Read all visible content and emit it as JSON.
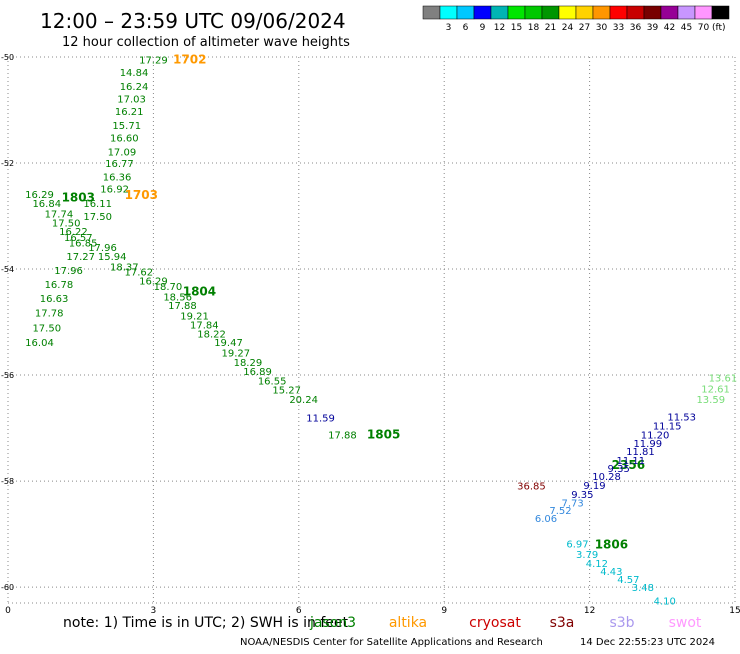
{
  "header": {
    "title": "12:00 – 23:59 UTC 09/06/2024",
    "subtitle": "12 hour collection of altimeter wave heights"
  },
  "scale": {
    "unit": "(ft)",
    "bins": [
      {
        "label": "",
        "color": "#808080"
      },
      {
        "label": "3",
        "color": "#00ffff"
      },
      {
        "label": "6",
        "color": "#00c8ff"
      },
      {
        "label": "9",
        "color": "#0000ff"
      },
      {
        "label": "12",
        "color": "#00b4b4"
      },
      {
        "label": "15",
        "color": "#00e600"
      },
      {
        "label": "18",
        "color": "#00c800"
      },
      {
        "label": "21",
        "color": "#009600"
      },
      {
        "label": "24",
        "color": "#ffff00"
      },
      {
        "label": "27",
        "color": "#ffd200"
      },
      {
        "label": "30",
        "color": "#ff9600"
      },
      {
        "label": "33",
        "color": "#ff0000"
      },
      {
        "label": "36",
        "color": "#c80000"
      },
      {
        "label": "39",
        "color": "#780000"
      },
      {
        "label": "42",
        "color": "#960096"
      },
      {
        "label": "45",
        "color": "#c896ff"
      },
      {
        "label": "70",
        "color": "#ff96ff"
      },
      {
        "label": "",
        "color": "#000000"
      }
    ]
  },
  "legend": {
    "note": "note:  1) Time is in UTC;  2) SWH is in feet",
    "satellites": [
      {
        "name": "jason3",
        "color": "#008000"
      },
      {
        "name": "altika",
        "color": "#ff9900"
      },
      {
        "name": "cryosat",
        "color": "#cc0000"
      },
      {
        "name": "s3a",
        "color": "#800000"
      },
      {
        "name": "s3b",
        "color": "#aa99ee"
      },
      {
        "name": "swot",
        "color": "#ff99ff"
      }
    ]
  },
  "footer": {
    "credit": "NOAA/NESDIS Center for Satellite Applications and Research",
    "timestamp": "14 Dec 22:55:23 UTC 2024"
  },
  "chart_data": {
    "type": "scatter",
    "x_ticks": [
      "0",
      "3",
      "6",
      "9",
      "12",
      "15"
    ],
    "y_ticks": [
      "-50",
      "-52",
      "-54",
      "-56",
      "-58",
      "-60"
    ],
    "xlim": [
      0,
      15
    ],
    "ylim": [
      -60.3,
      -50
    ],
    "grid": true,
    "series": [
      {
        "name": "jason3",
        "color": "#008000",
        "points": [
          {
            "x": 3.0,
            "y": -50.05,
            "label": "17.29"
          },
          {
            "x": 2.6,
            "y": -50.28,
            "label": "14.84"
          },
          {
            "x": 2.6,
            "y": -50.55,
            "label": "16.24"
          },
          {
            "x": 2.55,
            "y": -50.78,
            "label": "17.03"
          },
          {
            "x": 2.5,
            "y": -51.02,
            "label": "16.21"
          },
          {
            "x": 2.45,
            "y": -51.28,
            "label": "15.71"
          },
          {
            "x": 2.4,
            "y": -51.52,
            "label": "16.60"
          },
          {
            "x": 2.35,
            "y": -51.78,
            "label": "17.09"
          },
          {
            "x": 2.3,
            "y": -52.0,
            "label": "16.77"
          },
          {
            "x": 2.25,
            "y": -52.25,
            "label": "16.36"
          },
          {
            "x": 2.2,
            "y": -52.48,
            "label": "16.92"
          },
          {
            "x": 1.85,
            "y": -52.75,
            "label": "16.11"
          },
          {
            "x": 1.85,
            "y": -53.0,
            "label": "17.50"
          },
          {
            "x": 0.65,
            "y": -52.58,
            "label": "16.29"
          },
          {
            "x": 0.8,
            "y": -52.75,
            "label": "16.84"
          },
          {
            "x": 1.05,
            "y": -52.95,
            "label": "17.74"
          },
          {
            "x": 1.2,
            "y": -53.12,
            "label": "17.50"
          },
          {
            "x": 1.35,
            "y": -53.28,
            "label": "16.22"
          },
          {
            "x": 1.45,
            "y": -53.4,
            "label": "16.57"
          },
          {
            "x": 1.55,
            "y": -53.5,
            "label": "16.85"
          },
          {
            "x": 1.95,
            "y": -53.58,
            "label": "17.96"
          },
          {
            "x": 2.15,
            "y": -53.75,
            "label": "15.94"
          },
          {
            "x": 2.4,
            "y": -53.95,
            "label": "18.37"
          },
          {
            "x": 2.7,
            "y": -54.05,
            "label": "17.62"
          },
          {
            "x": 1.5,
            "y": -53.75,
            "label": "17.27"
          },
          {
            "x": 1.25,
            "y": -54.02,
            "label": "17.96"
          },
          {
            "x": 1.05,
            "y": -54.28,
            "label": "16.78"
          },
          {
            "x": 0.95,
            "y": -54.55,
            "label": "16.63"
          },
          {
            "x": 0.85,
            "y": -54.82,
            "label": "17.78"
          },
          {
            "x": 0.8,
            "y": -55.1,
            "label": "17.50"
          },
          {
            "x": 0.65,
            "y": -55.38,
            "label": "16.04"
          },
          {
            "x": 3.0,
            "y": -54.22,
            "label": "16.29"
          },
          {
            "x": 3.3,
            "y": -54.32,
            "label": "18.70"
          },
          {
            "x": 3.5,
            "y": -54.52,
            "label": "18.56"
          },
          {
            "x": 3.6,
            "y": -54.68,
            "label": "17.88"
          },
          {
            "x": 3.85,
            "y": -54.88,
            "label": "19.21"
          },
          {
            "x": 4.05,
            "y": -55.05,
            "label": "17.84"
          },
          {
            "x": 4.2,
            "y": -55.22,
            "label": "18.22"
          },
          {
            "x": 4.55,
            "y": -55.38,
            "label": "19.47"
          },
          {
            "x": 4.7,
            "y": -55.57,
            "label": "19.27"
          },
          {
            "x": 4.95,
            "y": -55.75,
            "label": "18.29"
          },
          {
            "x": 5.15,
            "y": -55.92,
            "label": "16.89"
          },
          {
            "x": 5.45,
            "y": -56.1,
            "label": "16.55"
          },
          {
            "x": 5.75,
            "y": -56.27,
            "label": "15.27"
          },
          {
            "x": 6.1,
            "y": -56.45,
            "label": "20.24"
          },
          {
            "x": 6.9,
            "y": -57.12,
            "label": "17.88"
          },
          {
            "x": 1.45,
            "y": -52.65,
            "label": "1803",
            "track": true
          },
          {
            "x": 3.95,
            "y": -54.42,
            "label": "1804",
            "track": true
          },
          {
            "x": 7.75,
            "y": -57.12,
            "label": "1805",
            "track": true
          },
          {
            "x": 12.45,
            "y": -59.2,
            "label": "1806",
            "track": true
          },
          {
            "x": 12.8,
            "y": -57.7,
            "label": "2356",
            "track": true
          }
        ]
      },
      {
        "name": "altika",
        "color": "#ff9900",
        "points": [
          {
            "x": 3.75,
            "y": -50.05,
            "label": "1702",
            "track": true
          },
          {
            "x": 2.75,
            "y": -52.6,
            "label": "1703",
            "track": true
          }
        ]
      },
      {
        "name": "s3a",
        "color": "#800000",
        "points": [
          {
            "x": 10.8,
            "y": -58.08,
            "label": "36.85"
          }
        ]
      },
      {
        "name": "extra-tracks",
        "color": "#33cc33",
        "points": [
          {
            "x": 14.75,
            "y": -56.05,
            "label": "13.61",
            "color": "#77dd77"
          },
          {
            "x": 14.6,
            "y": -56.25,
            "label": "12.61",
            "color": "#77dd77"
          },
          {
            "x": 14.5,
            "y": -56.45,
            "label": "13.59",
            "color": "#77dd77"
          },
          {
            "x": 13.9,
            "y": -56.78,
            "label": "11.53",
            "color": "#000099"
          },
          {
            "x": 13.6,
            "y": -56.95,
            "label": "11.15",
            "color": "#000099"
          },
          {
            "x": 13.35,
            "y": -57.12,
            "label": "11.20",
            "color": "#000099"
          },
          {
            "x": 13.2,
            "y": -57.28,
            "label": "11.99",
            "color": "#000099"
          },
          {
            "x": 13.05,
            "y": -57.43,
            "label": "11.81",
            "color": "#000099"
          },
          {
            "x": 12.85,
            "y": -57.6,
            "label": "11.11",
            "color": "#000099"
          },
          {
            "x": 12.6,
            "y": -57.75,
            "label": "9.35",
            "color": "#000099"
          },
          {
            "x": 12.35,
            "y": -57.9,
            "label": "10.28",
            "color": "#000099"
          },
          {
            "x": 12.1,
            "y": -58.07,
            "label": "9.19",
            "color": "#000099"
          },
          {
            "x": 11.85,
            "y": -58.24,
            "label": "9.35",
            "color": "#000099"
          },
          {
            "x": 11.65,
            "y": -58.4,
            "label": "7.73",
            "color": "#3388dd"
          },
          {
            "x": 11.4,
            "y": -58.55,
            "label": "7.52",
            "color": "#3388dd"
          },
          {
            "x": 11.1,
            "y": -58.7,
            "label": "6.06",
            "color": "#3388dd"
          },
          {
            "x": 11.75,
            "y": -59.18,
            "label": "6.97",
            "color": "#00bbcc"
          },
          {
            "x": 11.95,
            "y": -59.38,
            "label": "3.79",
            "color": "#00bbcc"
          },
          {
            "x": 12.15,
            "y": -59.55,
            "label": "4.12",
            "color": "#00bbcc"
          },
          {
            "x": 12.45,
            "y": -59.7,
            "label": "4.43",
            "color": "#00bbcc"
          },
          {
            "x": 12.8,
            "y": -59.85,
            "label": "4.57",
            "color": "#00bbcc"
          },
          {
            "x": 13.1,
            "y": -60.0,
            "label": "3.48",
            "color": "#00bbcc"
          },
          {
            "x": 13.55,
            "y": -60.25,
            "label": "4.10",
            "color": "#00bbcc"
          },
          {
            "x": 6.45,
            "y": -56.8,
            "label": "11.59",
            "color": "#000099"
          }
        ]
      }
    ]
  }
}
